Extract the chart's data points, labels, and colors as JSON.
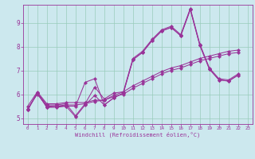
{
  "title": "",
  "xlabel": "Windchill (Refroidissement éolien,°C)",
  "ylabel": "",
  "bg_color": "#cce8ee",
  "line_color": "#993399",
  "xlim": [
    -0.5,
    23.5
  ],
  "ylim": [
    4.75,
    9.75
  ],
  "xticks": [
    0,
    1,
    2,
    3,
    4,
    5,
    6,
    7,
    8,
    9,
    10,
    11,
    12,
    13,
    14,
    15,
    16,
    17,
    18,
    19,
    20,
    21,
    22,
    23
  ],
  "yticks": [
    5,
    6,
    7,
    8,
    9
  ],
  "grid_color": "#99ccbb",
  "series": [
    [
      5.35,
      6.05,
      5.45,
      5.45,
      5.5,
      5.05,
      5.55,
      5.95,
      5.55,
      5.85,
      6.05,
      7.45,
      7.75,
      8.25,
      8.65,
      8.8,
      8.45,
      9.55,
      8.05,
      7.05,
      6.6,
      6.55,
      6.8
    ],
    [
      5.35,
      6.05,
      5.45,
      5.5,
      5.5,
      5.5,
      6.5,
      6.65,
      5.55,
      5.85,
      6.05,
      7.45,
      7.75,
      8.25,
      8.65,
      8.8,
      8.45,
      9.55,
      8.05,
      7.05,
      6.6,
      6.55,
      6.8
    ],
    [
      5.35,
      6.05,
      5.55,
      5.55,
      5.6,
      5.1,
      5.6,
      6.3,
      5.8,
      6.05,
      6.1,
      7.5,
      7.8,
      8.3,
      8.7,
      8.85,
      8.5,
      9.6,
      8.1,
      7.1,
      6.65,
      6.6,
      6.85
    ],
    [
      5.5,
      6.1,
      5.6,
      5.6,
      5.65,
      5.65,
      5.65,
      5.75,
      5.75,
      5.95,
      6.1,
      6.35,
      6.55,
      6.75,
      6.95,
      7.1,
      7.2,
      7.35,
      7.5,
      7.6,
      7.7,
      7.8,
      7.85
    ],
    [
      5.4,
      6.0,
      5.5,
      5.5,
      5.55,
      5.55,
      5.6,
      5.7,
      5.75,
      5.9,
      6.0,
      6.25,
      6.45,
      6.65,
      6.85,
      7.0,
      7.1,
      7.25,
      7.4,
      7.5,
      7.6,
      7.7,
      7.75
    ]
  ],
  "marker": "D",
  "markersize": 2.2,
  "linewidth": 0.75,
  "tick_fontsize_x": 4.2,
  "tick_fontsize_y": 5.5,
  "xlabel_fontsize": 5.0
}
